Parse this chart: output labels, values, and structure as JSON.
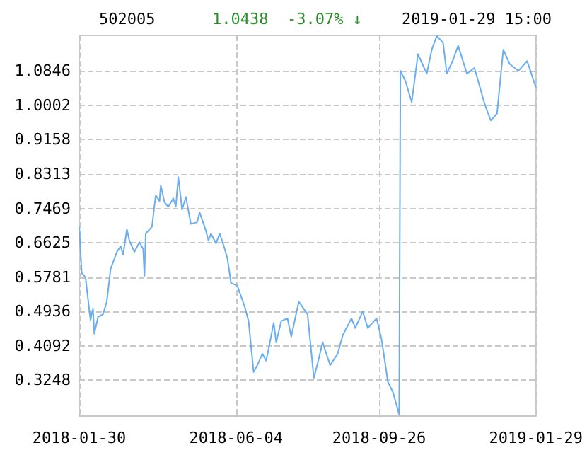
{
  "chart_data": {
    "type": "line",
    "title": "502005",
    "subtitle": "1.0438  -3.07% ↓",
    "annotations": [
      "2019-01-29 15:00"
    ],
    "x": [
      "2018-01-30",
      "2018-02-01",
      "2018-02-04",
      "2018-02-08",
      "2018-02-10",
      "2018-02-11",
      "2018-02-14",
      "2018-02-18",
      "2018-02-21",
      "2018-02-24",
      "2018-03-01",
      "2018-03-04",
      "2018-03-06",
      "2018-03-09",
      "2018-03-11",
      "2018-03-15",
      "2018-03-19",
      "2018-03-22",
      "2018-03-23",
      "2018-03-24",
      "2018-03-29",
      "2018-03-31",
      "2018-04-01",
      "2018-04-04",
      "2018-04-05",
      "2018-04-08",
      "2018-04-11",
      "2018-04-15",
      "2018-04-17",
      "2018-04-19",
      "2018-04-22",
      "2018-04-25",
      "2018-04-29",
      "2018-05-04",
      "2018-05-06",
      "2018-05-11",
      "2018-05-13",
      "2018-05-15",
      "2018-05-19",
      "2018-05-22",
      "2018-05-25",
      "2018-05-28",
      "2018-05-31",
      "2018-06-05",
      "2018-06-11",
      "2018-06-14",
      "2018-06-18",
      "2018-06-21",
      "2018-06-25",
      "2018-06-28",
      "2018-07-01",
      "2018-07-04",
      "2018-07-06",
      "2018-07-10",
      "2018-07-15",
      "2018-07-18",
      "2018-07-24",
      "2018-07-31",
      "2018-08-05",
      "2018-08-08",
      "2018-08-12",
      "2018-08-18",
      "2018-08-24",
      "2018-08-28",
      "2018-09-04",
      "2018-09-07",
      "2018-09-13",
      "2018-09-17",
      "2018-09-24",
      "2018-09-28",
      "2018-10-03",
      "2018-10-07",
      "2018-10-12",
      "2018-10-13",
      "2018-10-17",
      "2018-10-22",
      "2018-10-27",
      "2018-11-03",
      "2018-11-07",
      "2018-11-11",
      "2018-11-16",
      "2018-11-19",
      "2018-11-24",
      "2018-11-28",
      "2018-12-05",
      "2018-12-11",
      "2018-12-19",
      "2018-12-24",
      "2018-12-29",
      "2019-01-03",
      "2019-01-08",
      "2019-01-15",
      "2019-01-22",
      "2019-01-29"
    ],
    "series": [
      {
        "color": "#6aaef0",
        "values": [
          0.702,
          0.588,
          0.578,
          0.473,
          0.501,
          0.439,
          0.48,
          0.487,
          0.518,
          0.598,
          0.64,
          0.654,
          0.633,
          0.696,
          0.668,
          0.64,
          0.664,
          0.647,
          0.581,
          0.685,
          0.702,
          0.755,
          0.779,
          0.765,
          0.803,
          0.762,
          0.751,
          0.772,
          0.751,
          0.824,
          0.744,
          0.775,
          0.709,
          0.713,
          0.737,
          0.692,
          0.668,
          0.685,
          0.661,
          0.685,
          0.657,
          0.626,
          0.564,
          0.557,
          0.505,
          0.47,
          0.345,
          0.362,
          0.39,
          0.373,
          0.418,
          0.466,
          0.418,
          0.47,
          0.477,
          0.432,
          0.518,
          0.487,
          0.331,
          0.366,
          0.418,
          0.362,
          0.39,
          0.435,
          0.477,
          0.453,
          0.494,
          0.453,
          0.477,
          0.425,
          0.321,
          0.296,
          0.241,
          1.085,
          1.06,
          1.008,
          1.126,
          1.078,
          1.137,
          1.171,
          1.154,
          1.078,
          1.112,
          1.147,
          1.078,
          1.092,
          1.005,
          0.963,
          0.98,
          1.137,
          1.102,
          1.085,
          1.109,
          1.044
        ]
      }
    ],
    "xlim": [
      "2018-01-30",
      "2019-01-29"
    ],
    "xticks": [
      "2018-01-30",
      "2018-06-04",
      "2018-09-26",
      "2019-01-29"
    ],
    "ylim": [
      0.237,
      1.172
    ],
    "yticks": [
      0.3248,
      0.4092,
      0.4936,
      0.5781,
      0.6625,
      0.7469,
      0.8313,
      0.9158,
      1.0002,
      1.0846
    ],
    "grid": true,
    "marker": "none",
    "line_style": "solid"
  }
}
